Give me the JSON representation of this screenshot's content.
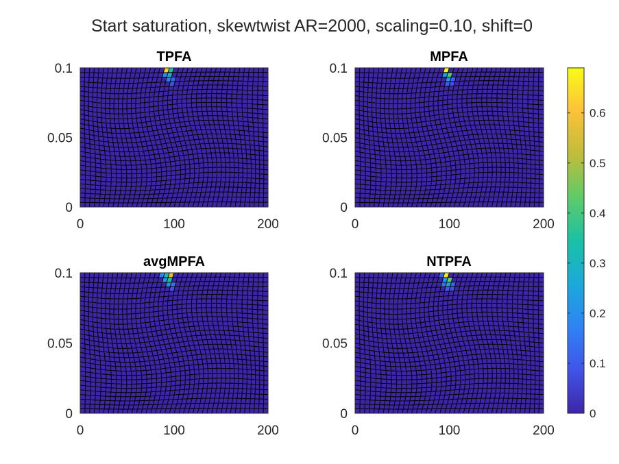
{
  "figure": {
    "title": "Start saturation, skewtwist AR=2000, scaling=0.10, shift=0"
  },
  "chart_data": {
    "type": "heatmap",
    "description": "Four pseudocolor cell plots of saturation on a twisted 40x30 grid",
    "colormap": "parula",
    "background_value": 0,
    "colors": {
      "low": "#3e26a8",
      "high": "#f9fb15"
    },
    "colorbar": {
      "range": [
        0,
        0.69
      ],
      "ticks": [
        0,
        0.1,
        0.2,
        0.3,
        0.4,
        0.5,
        0.6
      ],
      "tick_labels": [
        "0",
        "0.1",
        "0.2",
        "0.3",
        "0.4",
        "0.5",
        "0.6"
      ]
    },
    "xlim": [
      0,
      200
    ],
    "ylim": [
      0,
      0.1
    ],
    "xticks": [
      0,
      100,
      200
    ],
    "xtick_labels": [
      "0",
      "100",
      "200"
    ],
    "yticks": [
      0,
      0.05,
      0.1
    ],
    "ytick_labels": [
      "0",
      "0.05",
      "0.1"
    ],
    "grid_cells": [
      40,
      30
    ],
    "panels": [
      {
        "title": "TPFA",
        "cells": [
          {
            "col": 18,
            "row": 0,
            "value": 0.62
          },
          {
            "col": 19,
            "row": 0,
            "value": 0.35
          },
          {
            "col": 18,
            "row": 1,
            "value": 0.18
          },
          {
            "col": 19,
            "row": 1,
            "value": 0.28
          },
          {
            "col": 19,
            "row": 2,
            "value": 0.16
          },
          {
            "col": 20,
            "row": 2,
            "value": 0.12
          },
          {
            "col": 20,
            "row": 3,
            "value": 0.09
          }
        ]
      },
      {
        "title": "MPFA",
        "cells": [
          {
            "col": 19,
            "row": 0,
            "value": 0.69
          },
          {
            "col": 19,
            "row": 1,
            "value": 0.22
          },
          {
            "col": 20,
            "row": 1,
            "value": 0.42
          },
          {
            "col": 20,
            "row": 2,
            "value": 0.22
          },
          {
            "col": 21,
            "row": 2,
            "value": 0.12
          },
          {
            "col": 20,
            "row": 3,
            "value": 0.1
          },
          {
            "col": 21,
            "row": 3,
            "value": 0.08
          }
        ]
      },
      {
        "title": "avgMPFA",
        "cells": [
          {
            "col": 17,
            "row": 0,
            "value": 0.18
          },
          {
            "col": 18,
            "row": 0,
            "value": 0.3
          },
          {
            "col": 19,
            "row": 0,
            "value": 0.57
          },
          {
            "col": 18,
            "row": 1,
            "value": 0.22
          },
          {
            "col": 19,
            "row": 1,
            "value": 0.35
          },
          {
            "col": 19,
            "row": 2,
            "value": 0.2
          },
          {
            "col": 20,
            "row": 2,
            "value": 0.14
          },
          {
            "col": 20,
            "row": 3,
            "value": 0.09
          }
        ]
      },
      {
        "title": "NTPFA",
        "cells": [
          {
            "col": 18,
            "row": 0,
            "value": 0.12
          },
          {
            "col": 19,
            "row": 0,
            "value": 0.66
          },
          {
            "col": 19,
            "row": 1,
            "value": 0.22
          },
          {
            "col": 20,
            "row": 1,
            "value": 0.45
          },
          {
            "col": 19,
            "row": 2,
            "value": 0.14
          },
          {
            "col": 20,
            "row": 2,
            "value": 0.24
          },
          {
            "col": 21,
            "row": 2,
            "value": 0.12
          },
          {
            "col": 20,
            "row": 3,
            "value": 0.1
          },
          {
            "col": 21,
            "row": 3,
            "value": 0.08
          }
        ]
      }
    ]
  }
}
